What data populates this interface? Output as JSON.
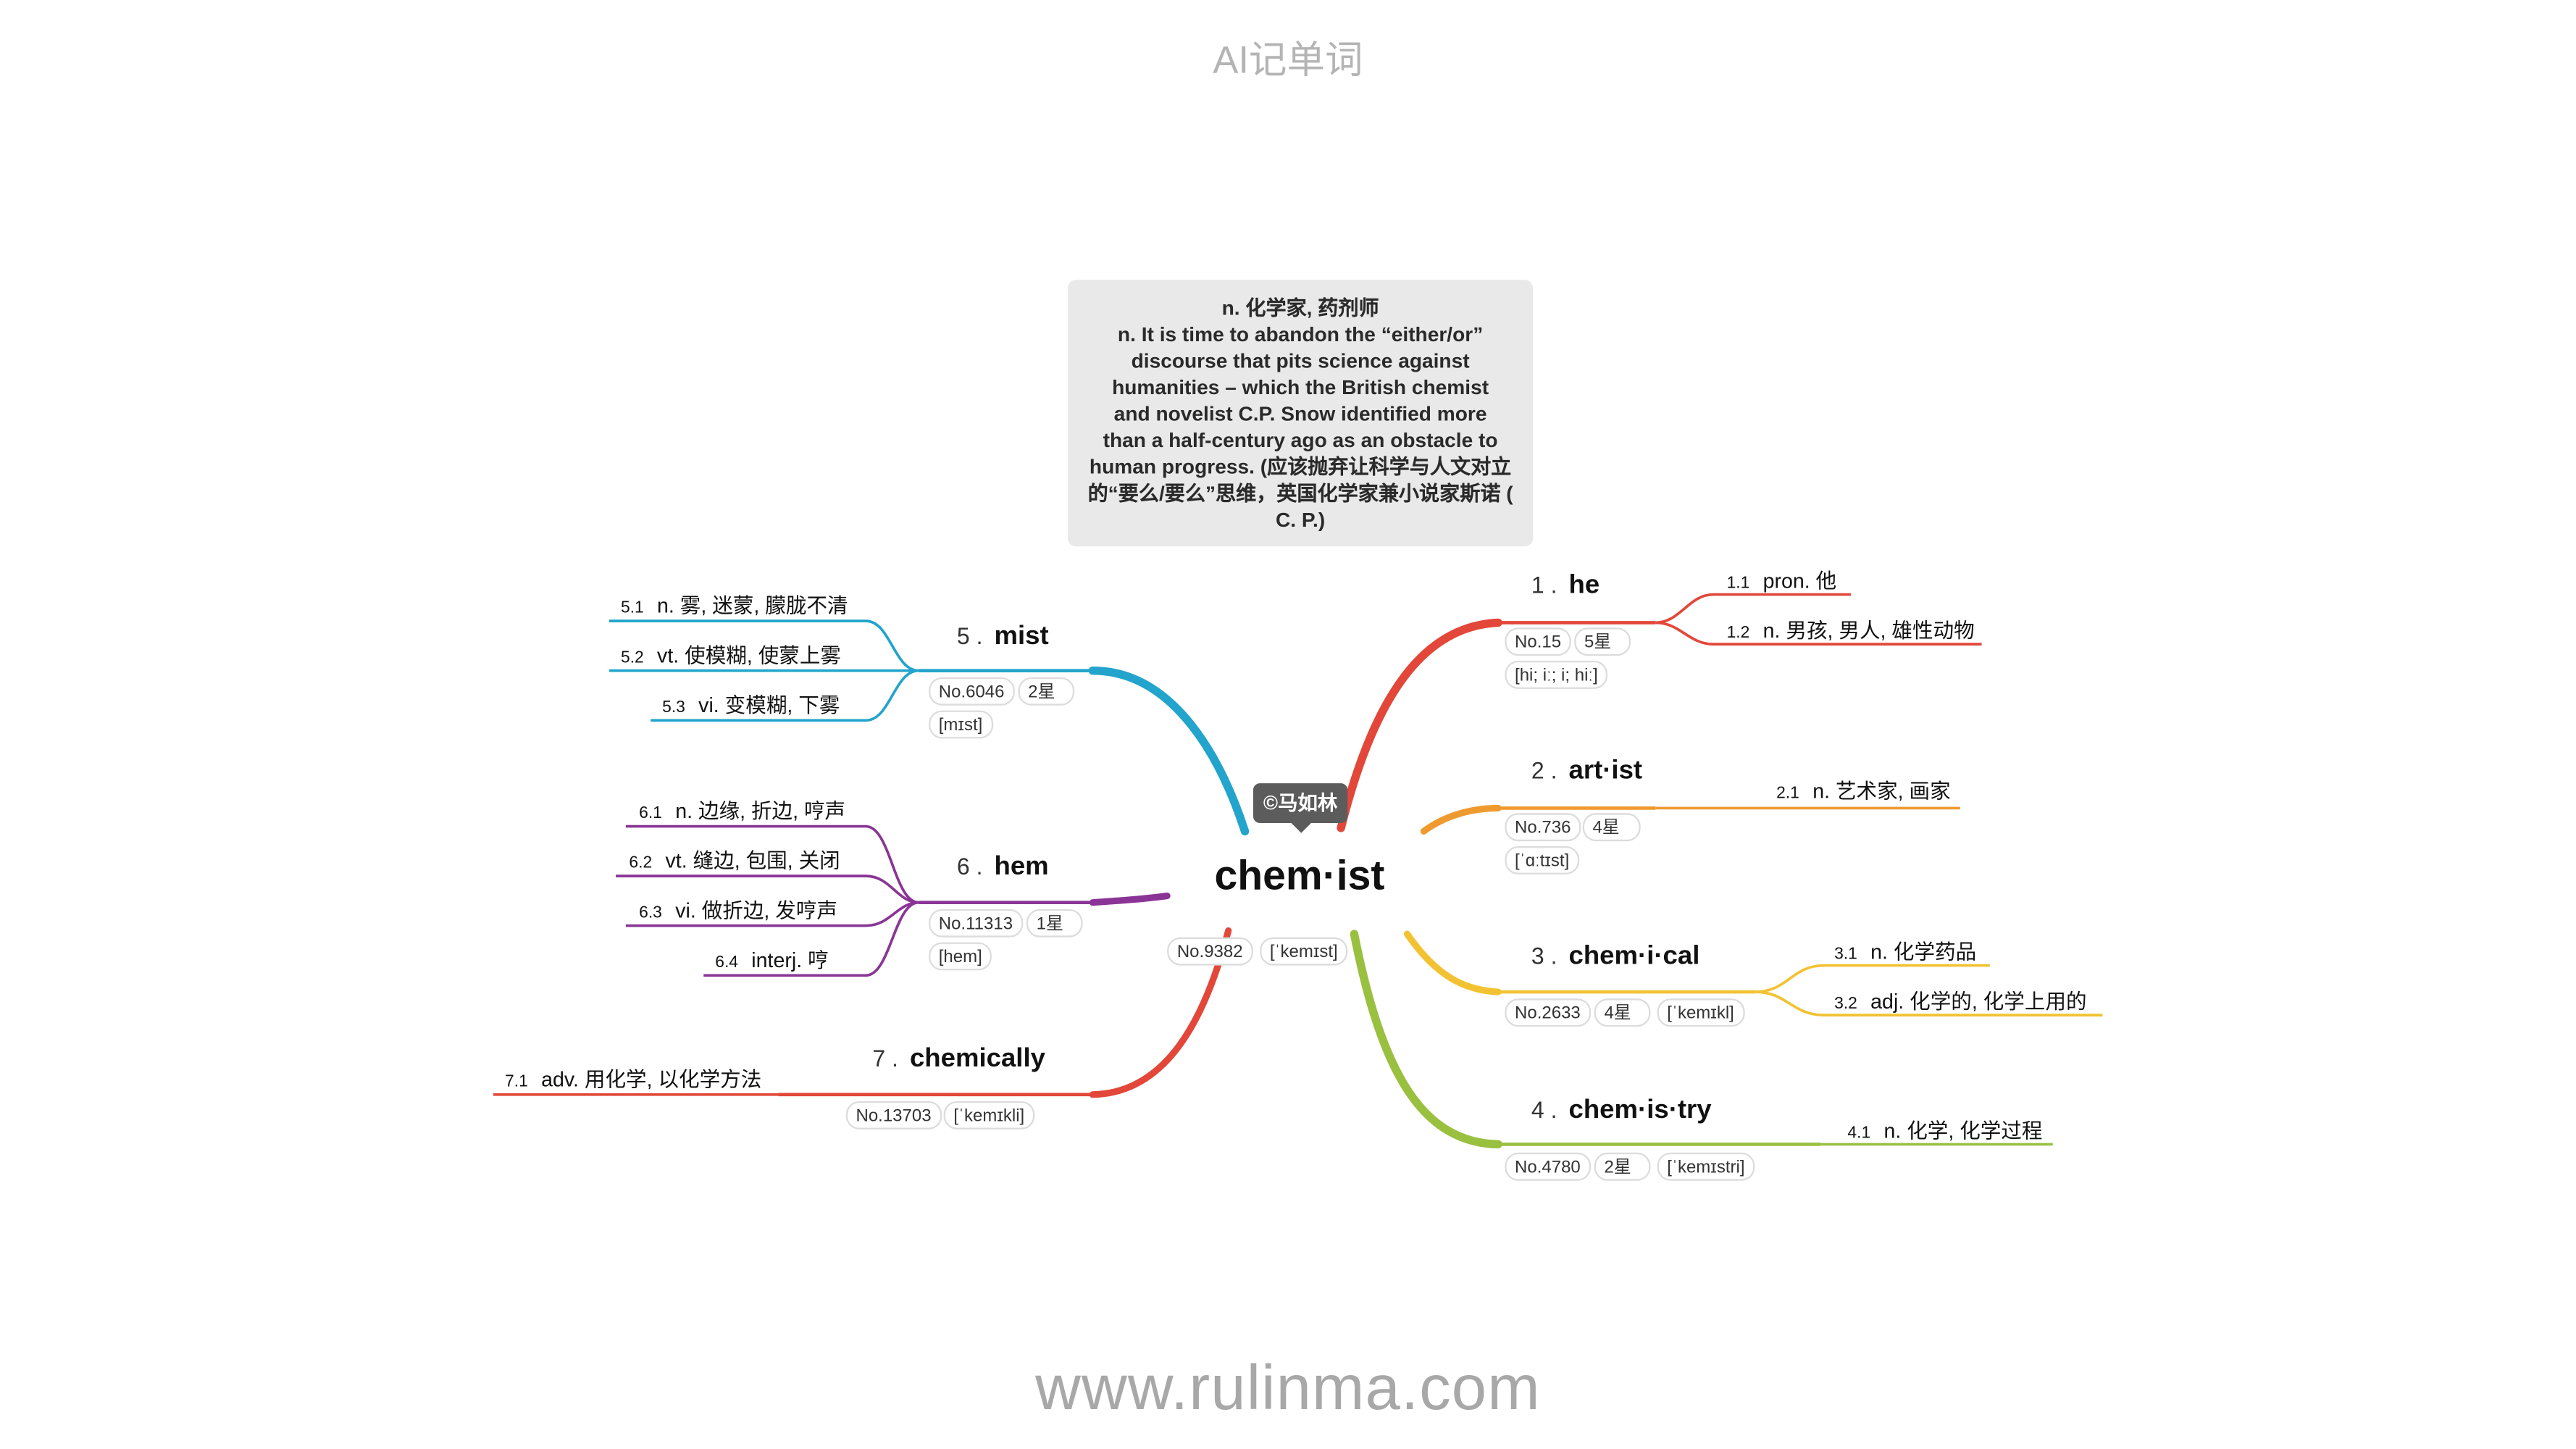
{
  "header": {
    "title": "AI记单词"
  },
  "footer": {
    "url": "www.rulinma.com"
  },
  "definition_box": {
    "lines": [
      "n. 化学家, 药剂师",
      "n. It is time to abandon the “either/or”",
      "discourse that pits science against",
      "humanities – which the British chemist",
      "and novelist C.P. Snow identified more",
      "than a half-century ago as an obstacle to",
      "human progress. (应该抛弃让科学与人文对立",
      "的“要么/要么”思维，英国化学家兼小说家斯诺 (",
      "C. P.)"
    ]
  },
  "center": {
    "word": "chem·ist",
    "copyright": "©马如林",
    "rank": "No.9382",
    "phonetic": "[ˈkemɪst]"
  },
  "branches": [
    {
      "num": "1 .",
      "word": "he",
      "color": "#e2473a",
      "tags_row1": [
        "No.15",
        "5星"
      ],
      "tags_row2": [
        "[hi; iː; i; hiː]"
      ],
      "senses": [
        {
          "n": "1.1",
          "text": "pron. 他"
        },
        {
          "n": "1.2",
          "text": "n. 男孩, 男人, 雄性动物"
        }
      ]
    },
    {
      "num": "2 .",
      "word": "art·ist",
      "color": "#ef9a2f",
      "tags_row1": [
        "No.736",
        "4星"
      ],
      "tags_row2": [
        "[ˈɑːtɪst]"
      ],
      "senses": [
        {
          "n": "2.1",
          "text": "n. 艺术家, 画家"
        }
      ]
    },
    {
      "num": "3 .",
      "word": "chem·i·cal",
      "color": "#f2c232",
      "tags_row1": [
        "No.2633",
        "4星",
        "[ˈkemɪkl]"
      ],
      "tags_row2": [],
      "senses": [
        {
          "n": "3.1",
          "text": "n. 化学药品"
        },
        {
          "n": "3.2",
          "text": "adj. 化学的, 化学上用的"
        }
      ]
    },
    {
      "num": "4 .",
      "word": "chem·is·try",
      "color": "#9ac040",
      "tags_row1": [
        "No.4780",
        "2星",
        "[ˈkemɪstri]"
      ],
      "tags_row2": [],
      "senses": [
        {
          "n": "4.1",
          "text": "n. 化学, 化学过程"
        }
      ]
    },
    {
      "num": "5 .",
      "word": "mist",
      "color": "#22a4cc",
      "tags_row1": [
        "No.6046",
        "2星"
      ],
      "tags_row2": [
        "[mɪst]"
      ],
      "senses": [
        {
          "n": "5.1",
          "text": "n. 雾, 迷蒙, 朦胧不清"
        },
        {
          "n": "5.2",
          "text": "vt. 使模糊, 使蒙上雾"
        },
        {
          "n": "5.3",
          "text": "vi. 变模糊, 下雾"
        }
      ]
    },
    {
      "num": "6 .",
      "word": "hem",
      "color": "#8a3596",
      "tags_row1": [
        "No.11313",
        "1星"
      ],
      "tags_row2": [
        "[hem]"
      ],
      "senses": [
        {
          "n": "6.1",
          "text": "n. 边缘, 折边, 哼声"
        },
        {
          "n": "6.2",
          "text": "vt. 缝边, 包围, 关闭"
        },
        {
          "n": "6.3",
          "text": "vi. 做折边, 发哼声"
        },
        {
          "n": "6.4",
          "text": "interj. 哼"
        }
      ]
    },
    {
      "num": "7 .",
      "word": "chemically",
      "color": "#e2473a",
      "tags_row1": [
        "No.13703",
        "[ˈkemɪkli]"
      ],
      "tags_row2": [],
      "senses": [
        {
          "n": "7.1",
          "text": "adv. 用化学, 以化学方法"
        }
      ]
    }
  ]
}
